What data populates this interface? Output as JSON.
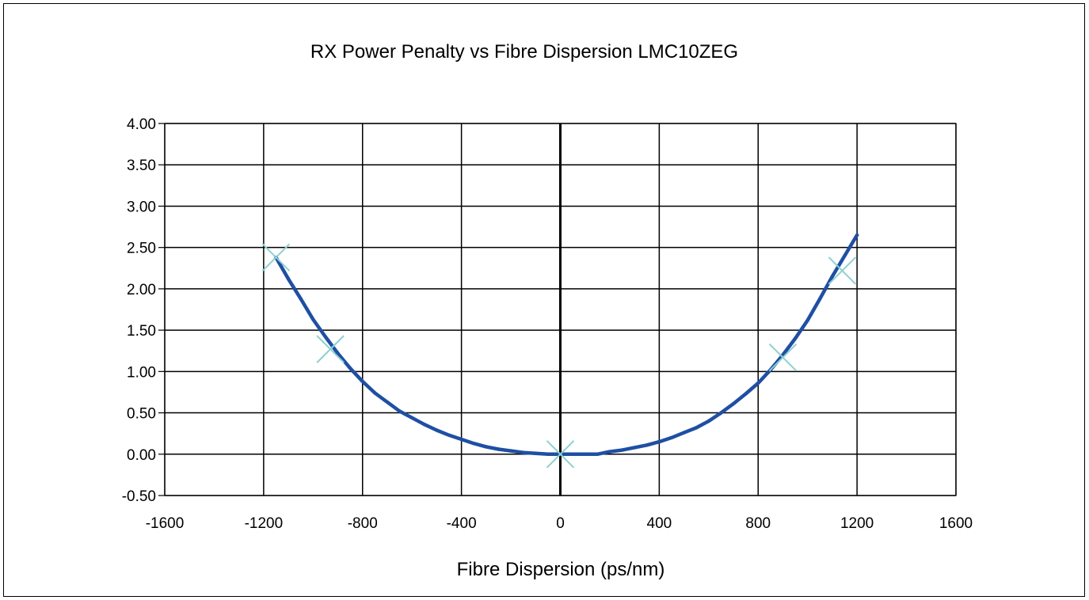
{
  "chart_data": {
    "type": "line",
    "title": "RX Power Penalty vs Fibre Dispersion LMC10ZEG",
    "xlabel": "Fibre Dispersion (ps/nm)",
    "ylabel": "",
    "xlim": [
      -1600,
      1600
    ],
    "ylim": [
      -0.5,
      4.0
    ],
    "xticks": [
      "-1600",
      "-1200",
      "-800",
      "-400",
      "0",
      "400",
      "800",
      "1200",
      "1600"
    ],
    "yticks": [
      "4.00",
      "3.50",
      "3.00",
      "2.50",
      "2.00",
      "1.50",
      "1.00",
      "0.50",
      "0.00",
      "-0.50"
    ],
    "grid": true,
    "legend": "none",
    "colors": {
      "curve": "#1f4fa3",
      "markers": "#8fd0d0",
      "grid": "#000000"
    },
    "series": [
      {
        "type": "line",
        "x": [
          -1150,
          -1100,
          -1050,
          -1000,
          -950,
          -900,
          -850,
          -800,
          -750,
          -700,
          -650,
          -600,
          -550,
          -500,
          -450,
          -400,
          -350,
          -300,
          -250,
          -200,
          -150,
          -100,
          -50,
          0,
          50,
          100,
          150,
          200,
          250,
          300,
          350,
          400,
          450,
          500,
          550,
          600,
          650,
          700,
          750,
          800,
          850,
          900,
          950,
          1000,
          1050,
          1100,
          1150,
          1200
        ],
        "y": [
          2.38,
          2.12,
          1.88,
          1.63,
          1.42,
          1.22,
          1.04,
          0.88,
          0.74,
          0.63,
          0.52,
          0.44,
          0.36,
          0.29,
          0.23,
          0.18,
          0.13,
          0.09,
          0.06,
          0.04,
          0.02,
          0.01,
          0.0,
          0.0,
          0.0,
          0.0,
          0.0,
          0.03,
          0.05,
          0.08,
          0.11,
          0.15,
          0.2,
          0.26,
          0.32,
          0.4,
          0.5,
          0.61,
          0.73,
          0.86,
          1.02,
          1.2,
          1.4,
          1.62,
          1.88,
          2.15,
          2.4,
          2.65
        ]
      },
      {
        "type": "scatter",
        "marker": "x",
        "x": [
          -1150,
          -930,
          0,
          900,
          1140
        ],
        "y": [
          2.38,
          1.27,
          0.0,
          1.17,
          2.22
        ]
      }
    ]
  }
}
